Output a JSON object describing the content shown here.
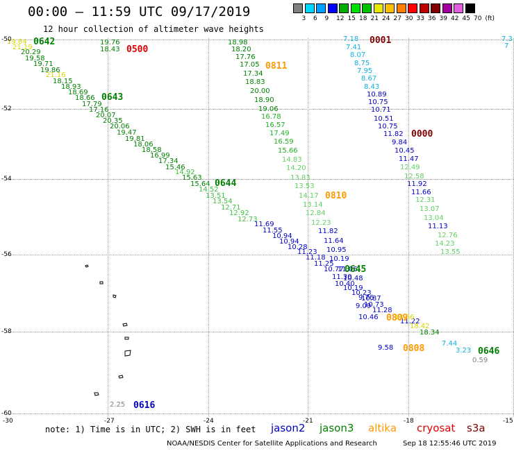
{
  "title": "00:00 — 11:59 UTC 09/17/2019",
  "subtitle": "12 hour collection of altimeter wave heights",
  "legend": {
    "labels": [
      "3",
      "6",
      "9",
      "12",
      "15",
      "18",
      "21",
      "24",
      "27",
      "30",
      "33",
      "36",
      "39",
      "42",
      "45",
      "70",
      "(ft)"
    ],
    "colors": [
      "#808080",
      "#00d8ff",
      "#00a0ff",
      "#0000ff",
      "#00b000",
      "#00e000",
      "#00c000",
      "#e8e800",
      "#ffc000",
      "#ff8000",
      "#ff0000",
      "#c00000",
      "#800000",
      "#a000a0",
      "#e060e0",
      "#000000"
    ]
  },
  "axes": {
    "lat_labels": [
      "-50",
      "-52",
      "-54",
      "-56",
      "-58",
      "-60"
    ],
    "lon_labels": [
      "-30",
      "-27",
      "-24",
      "-21",
      "-18",
      "-15"
    ]
  },
  "note": "note: 1) Time is in UTC; 2) SWH is in feet",
  "satellites": [
    {
      "name": "jason2",
      "color": "#0000c8"
    },
    {
      "name": "jason3",
      "color": "#008000"
    },
    {
      "name": "altika",
      "color": "#ff9900"
    },
    {
      "name": "cryosat",
      "color": "#e00000"
    },
    {
      "name": "s3a",
      "color": "#800000"
    }
  ],
  "credit": "NOAA/NESDIS Center for Satellite Applications and Research",
  "credit_time": "Sep 18 12:55:46 UTC 2019",
  "colors": {
    "jason2": "#0000c8",
    "jason3": "#008000",
    "jason3_light": "#22b022",
    "green_light": "#40c040",
    "pale_green": "#60d060",
    "yellow": "#d8d800",
    "altika": "#ff9900",
    "cryosat": "#e00000",
    "s3a": "#800000",
    "cyan": "#10b0e0",
    "gray": "#808080"
  },
  "time_labels": [
    {
      "text": "0642",
      "c": "jason3"
    },
    {
      "text": "0500",
      "c": "cryosat"
    },
    {
      "text": "0001",
      "c": "s3a"
    },
    {
      "text": "0811",
      "c": "altika"
    },
    {
      "text": "0643",
      "c": "jason3"
    },
    {
      "text": "0000",
      "c": "s3a"
    },
    {
      "text": "0644",
      "c": "jason3"
    },
    {
      "text": "0810",
      "c": "altika"
    },
    {
      "text": "0645",
      "c": "jason3"
    },
    {
      "text": "0809",
      "c": "altika"
    },
    {
      "text": "0808",
      "c": "altika"
    },
    {
      "text": "0646",
      "c": "jason3"
    },
    {
      "text": "0616",
      "c": "jason2"
    }
  ],
  "values": [
    {
      "t": "19.84",
      "c": "yellow"
    },
    {
      "t": "20.29",
      "c": "jason3"
    },
    {
      "t": "21.19",
      "c": "yellow"
    },
    {
      "t": "19.58",
      "c": "jason3"
    },
    {
      "t": "19.71",
      "c": "jason3"
    },
    {
      "t": "19.86",
      "c": "jason3"
    },
    {
      "t": "21.16",
      "c": "yellow"
    },
    {
      "t": "18.15",
      "c": "jason3"
    },
    {
      "t": "18.93",
      "c": "jason3"
    },
    {
      "t": "18.69",
      "c": "jason3"
    },
    {
      "t": "18.66",
      "c": "jason3"
    },
    {
      "t": "17.79",
      "c": "jason3"
    },
    {
      "t": "17.16",
      "c": "jason3"
    },
    {
      "t": "20.07",
      "c": "jason3"
    },
    {
      "t": "20.35",
      "c": "jason3"
    },
    {
      "t": "20.06",
      "c": "jason3"
    },
    {
      "t": "19.47",
      "c": "jason3"
    },
    {
      "t": "19.81",
      "c": "jason3"
    },
    {
      "t": "18.06",
      "c": "jason3"
    },
    {
      "t": "18.58",
      "c": "jason3"
    },
    {
      "t": "16.99",
      "c": "jason3"
    },
    {
      "t": "17.34",
      "c": "jason3"
    },
    {
      "t": "15.46",
      "c": "jason3"
    },
    {
      "t": "14.92",
      "c": "green_light"
    },
    {
      "t": "15.63",
      "c": "jason3"
    },
    {
      "t": "15.64",
      "c": "jason3"
    },
    {
      "t": "14.52",
      "c": "green_light"
    },
    {
      "t": "13.51",
      "c": "green_light"
    },
    {
      "t": "13.54",
      "c": "green_light"
    },
    {
      "t": "12.71",
      "c": "green_light"
    },
    {
      "t": "12.92",
      "c": "green_light"
    },
    {
      "t": "12.73",
      "c": "green_light"
    },
    {
      "t": "19.76",
      "c": "jason3"
    },
    {
      "t": "18.43",
      "c": "jason3"
    },
    {
      "t": "18.98",
      "c": "jason3"
    },
    {
      "t": "18.20",
      "c": "jason3"
    },
    {
      "t": "17.76",
      "c": "jason3"
    },
    {
      "t": "17.05",
      "c": "jason3"
    },
    {
      "t": "17.34",
      "c": "jason3"
    },
    {
      "t": "18.83",
      "c": "jason3"
    },
    {
      "t": "20.00",
      "c": "jason3"
    },
    {
      "t": "18.90",
      "c": "jason3"
    },
    {
      "t": "19.06",
      "c": "jason3"
    },
    {
      "t": "16.78",
      "c": "jason3_light"
    },
    {
      "t": "16.57",
      "c": "jason3_light"
    },
    {
      "t": "17.49",
      "c": "jason3_light"
    },
    {
      "t": "16.59",
      "c": "jason3_light"
    },
    {
      "t": "15.66",
      "c": "jason3_light"
    },
    {
      "t": "14.83",
      "c": "pale_green"
    },
    {
      "t": "14.20",
      "c": "pale_green"
    },
    {
      "t": "13.83",
      "c": "pale_green"
    },
    {
      "t": "13.53",
      "c": "pale_green"
    },
    {
      "t": "14.17",
      "c": "pale_green"
    },
    {
      "t": "13.14",
      "c": "pale_green"
    },
    {
      "t": "12.84",
      "c": "pale_green"
    },
    {
      "t": "12.23",
      "c": "pale_green"
    },
    {
      "t": "11.69",
      "c": "jason2"
    },
    {
      "t": "11.55",
      "c": "jason2"
    },
    {
      "t": "10.94",
      "c": "jason2"
    },
    {
      "t": "10.94",
      "c": "jason2"
    },
    {
      "t": "10.28",
      "c": "jason2"
    },
    {
      "t": "11.23",
      "c": "jason2"
    },
    {
      "t": "11.18",
      "c": "jason2"
    },
    {
      "t": "11.25",
      "c": "jason2"
    },
    {
      "t": "10.77",
      "c": "jason2"
    },
    {
      "t": "11.06",
      "c": "jason2"
    },
    {
      "t": "11.30",
      "c": "jason2"
    },
    {
      "t": "10.48",
      "c": "jason2"
    },
    {
      "t": "10.40",
      "c": "jason2"
    },
    {
      "t": "10.19",
      "c": "jason2"
    },
    {
      "t": "10.23",
      "c": "jason2"
    },
    {
      "t": "9.76",
      "c": "jason2"
    },
    {
      "t": "10.87",
      "c": "jason2"
    },
    {
      "t": "9.09",
      "c": "jason2"
    },
    {
      "t": "10.73",
      "c": "jason2"
    },
    {
      "t": "11.28",
      "c": "jason2"
    },
    {
      "t": "10.46",
      "c": "jason2"
    },
    {
      "t": "11.22",
      "c": "jason2"
    },
    {
      "t": "11.82",
      "c": "jason2"
    },
    {
      "t": "11.64",
      "c": "jason2"
    },
    {
      "t": "10.95",
      "c": "jason2"
    },
    {
      "t": "10.19",
      "c": "jason2"
    },
    {
      "t": "7.18",
      "c": "cyan"
    },
    {
      "t": "7.41",
      "c": "cyan"
    },
    {
      "t": "8.07",
      "c": "cyan"
    },
    {
      "t": "8.75",
      "c": "cyan"
    },
    {
      "t": "7.95",
      "c": "cyan"
    },
    {
      "t": "8.67",
      "c": "cyan"
    },
    {
      "t": "8.43",
      "c": "cyan"
    },
    {
      "t": "10.89",
      "c": "jason2"
    },
    {
      "t": "10.75",
      "c": "jason2"
    },
    {
      "t": "10.71",
      "c": "jason2"
    },
    {
      "t": "10.51",
      "c": "jason2"
    },
    {
      "t": "10.75",
      "c": "jason2"
    },
    {
      "t": "11.82",
      "c": "jason2"
    },
    {
      "t": "9.84",
      "c": "jason2"
    },
    {
      "t": "10.45",
      "c": "jason2"
    },
    {
      "t": "11.47",
      "c": "jason2"
    },
    {
      "t": "12.49",
      "c": "pale_green"
    },
    {
      "t": "12.58",
      "c": "pale_green"
    },
    {
      "t": "11.92",
      "c": "jason2"
    },
    {
      "t": "11.66",
      "c": "jason2"
    },
    {
      "t": "12.31",
      "c": "pale_green"
    },
    {
      "t": "13.07",
      "c": "pale_green"
    },
    {
      "t": "13.04",
      "c": "pale_green"
    },
    {
      "t": "11.13",
      "c": "jason2"
    },
    {
      "t": "12.76",
      "c": "pale_green"
    },
    {
      "t": "14.23",
      "c": "pale_green"
    },
    {
      "t": "13.55",
      "c": "pale_green"
    },
    {
      "t": "13.66",
      "c": "yellow"
    },
    {
      "t": "18.42",
      "c": "yellow"
    },
    {
      "t": "18.34",
      "c": "jason3"
    },
    {
      "t": "9.58",
      "c": "jason2"
    },
    {
      "t": "7.44",
      "c": "cyan"
    },
    {
      "t": "3.23",
      "c": "cyan"
    },
    {
      "t": "0.59",
      "c": "gray"
    },
    {
      "t": "2.25",
      "c": "gray"
    },
    {
      "t": "7.3",
      "c": "cyan"
    },
    {
      "t": "7",
      "c": "cyan"
    }
  ]
}
